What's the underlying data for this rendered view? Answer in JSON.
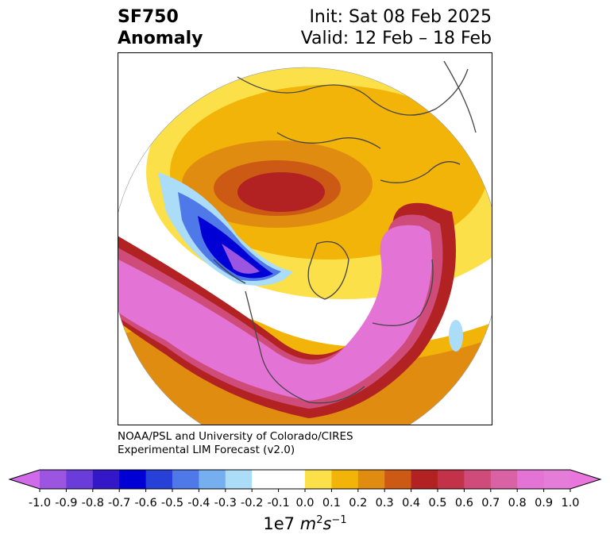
{
  "header": {
    "title_line1": "SF750",
    "title_line2": "Anomaly",
    "init": "Init: Sat 08 Feb 2025",
    "valid": "Valid: 12 Feb – 18 Feb"
  },
  "credit": {
    "line1": "NOAA/PSL and University of Colorado/CIRES",
    "line2": "Experimental LIM Forecast (v2.0)"
  },
  "colorbar": {
    "ticks": [
      "-1.0",
      "-0.9",
      "-0.8",
      "-0.7",
      "-0.6",
      "-0.5",
      "-0.4",
      "-0.3",
      "-0.2",
      "-0.1",
      "0.0",
      "0.1",
      "0.2",
      "0.3",
      "0.4",
      "0.5",
      "0.6",
      "0.7",
      "0.8",
      "0.9",
      "1.0"
    ],
    "colors": [
      "#9b55e0",
      "#6a3ddb",
      "#3418c8",
      "#0000d4",
      "#2640d8",
      "#4f78e8",
      "#76aff0",
      "#abdcf8",
      "#ffffff",
      "#ffffff",
      "#fce04a",
      "#f2b408",
      "#e08c10",
      "#cc5a14",
      "#b22222",
      "#c23349",
      "#cf4c7a",
      "#d962a5",
      "#e473d6",
      "#e47dd8"
    ],
    "min_color": "#d06ae8",
    "max_color": "#e876dc",
    "units_main": "1e7 ",
    "units_math": "m",
    "units_exp1": "2",
    "units_math2": "s",
    "units_exp2": "−1"
  }
}
